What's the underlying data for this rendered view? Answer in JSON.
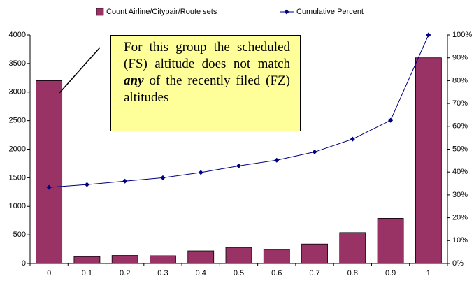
{
  "chart_data": {
    "type": "bar_line",
    "categories": [
      "0",
      "0.1",
      "0.2",
      "0.3",
      "0.4",
      "0.5",
      "0.6",
      "0.7",
      "0.8",
      "0.9",
      "1"
    ],
    "series": [
      {
        "name": "Count Airline/Citypair/Route sets",
        "type": "bar",
        "color": "#993366",
        "values": [
          3200,
          120,
          140,
          135,
          220,
          280,
          245,
          340,
          540,
          790,
          3600
        ]
      },
      {
        "name": "Cumulative Percent",
        "type": "line",
        "axis": "y2",
        "color": "#000080",
        "values": [
          33.3,
          34.5,
          36,
          37.5,
          39.8,
          42.7,
          45.2,
          48.8,
          54.4,
          62.6,
          100
        ]
      }
    ],
    "ylim": [
      0,
      4000
    ],
    "yticks": [
      0,
      500,
      1000,
      1500,
      2000,
      2500,
      3000,
      3500,
      4000
    ],
    "y2lim": [
      0,
      100
    ],
    "y2ticks": [
      {
        "value": 0,
        "label": "0%"
      },
      {
        "value": 10,
        "label": "10%"
      },
      {
        "value": 20,
        "label": "20%"
      },
      {
        "value": 30,
        "label": "30%"
      },
      {
        "value": 40,
        "label": "40%"
      },
      {
        "value": 50,
        "label": "50%"
      },
      {
        "value": 60,
        "label": "60%"
      },
      {
        "value": 70,
        "label": "70%"
      },
      {
        "value": 80,
        "label": "80%"
      },
      {
        "value": 90,
        "label": "90%"
      },
      {
        "value": 100,
        "label": "100%"
      }
    ],
    "grid": false,
    "legend": "top",
    "annotation": {
      "text_before": "For this group the scheduled (FS) altitude does not match",
      "emphasis": "any",
      "text_after": "of the recently filed (FZ) altitudes"
    }
  }
}
